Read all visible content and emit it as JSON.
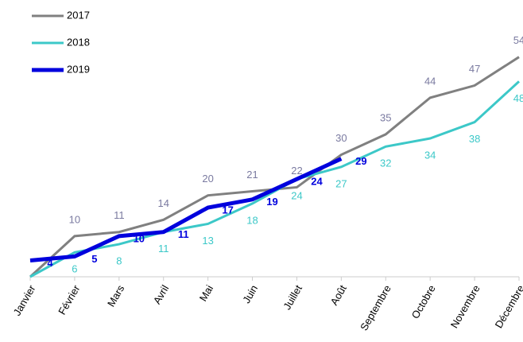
{
  "chart_data": {
    "type": "line",
    "categories": [
      "Janvier",
      "Février",
      "Mars",
      "Avril",
      "Mai",
      "Juin",
      "Juillet",
      "Août",
      "Septembre",
      "Octobre",
      "Novembre",
      "Décembre"
    ],
    "series": [
      {
        "name": "2017",
        "color": "#808080",
        "label_color": "#7a7aa0",
        "values": [
          0,
          10,
          11,
          14,
          20,
          21,
          22,
          30,
          35,
          44,
          47,
          54
        ],
        "value_labels": [
          null,
          "10",
          "11",
          "14",
          "20",
          "21",
          "22",
          "30",
          "35",
          "44",
          "47",
          "54"
        ]
      },
      {
        "name": "2018",
        "color": "#3cc8c8",
        "label_color": "#3cc8c8",
        "values": [
          0,
          6,
          8,
          11,
          13,
          18,
          24,
          27,
          32,
          34,
          38,
          48
        ],
        "value_labels": [
          null,
          "6",
          "8",
          "11",
          "13",
          "18",
          "24",
          "27",
          "32",
          "34",
          "38",
          "48"
        ]
      },
      {
        "name": "2019",
        "color": "#0000dd",
        "label_color": "#0000dd",
        "values": [
          4,
          5,
          10,
          11,
          17,
          19,
          24,
          29,
          null,
          null,
          null,
          null
        ]
      }
    ],
    "ylim": [
      0,
      60
    ]
  }
}
